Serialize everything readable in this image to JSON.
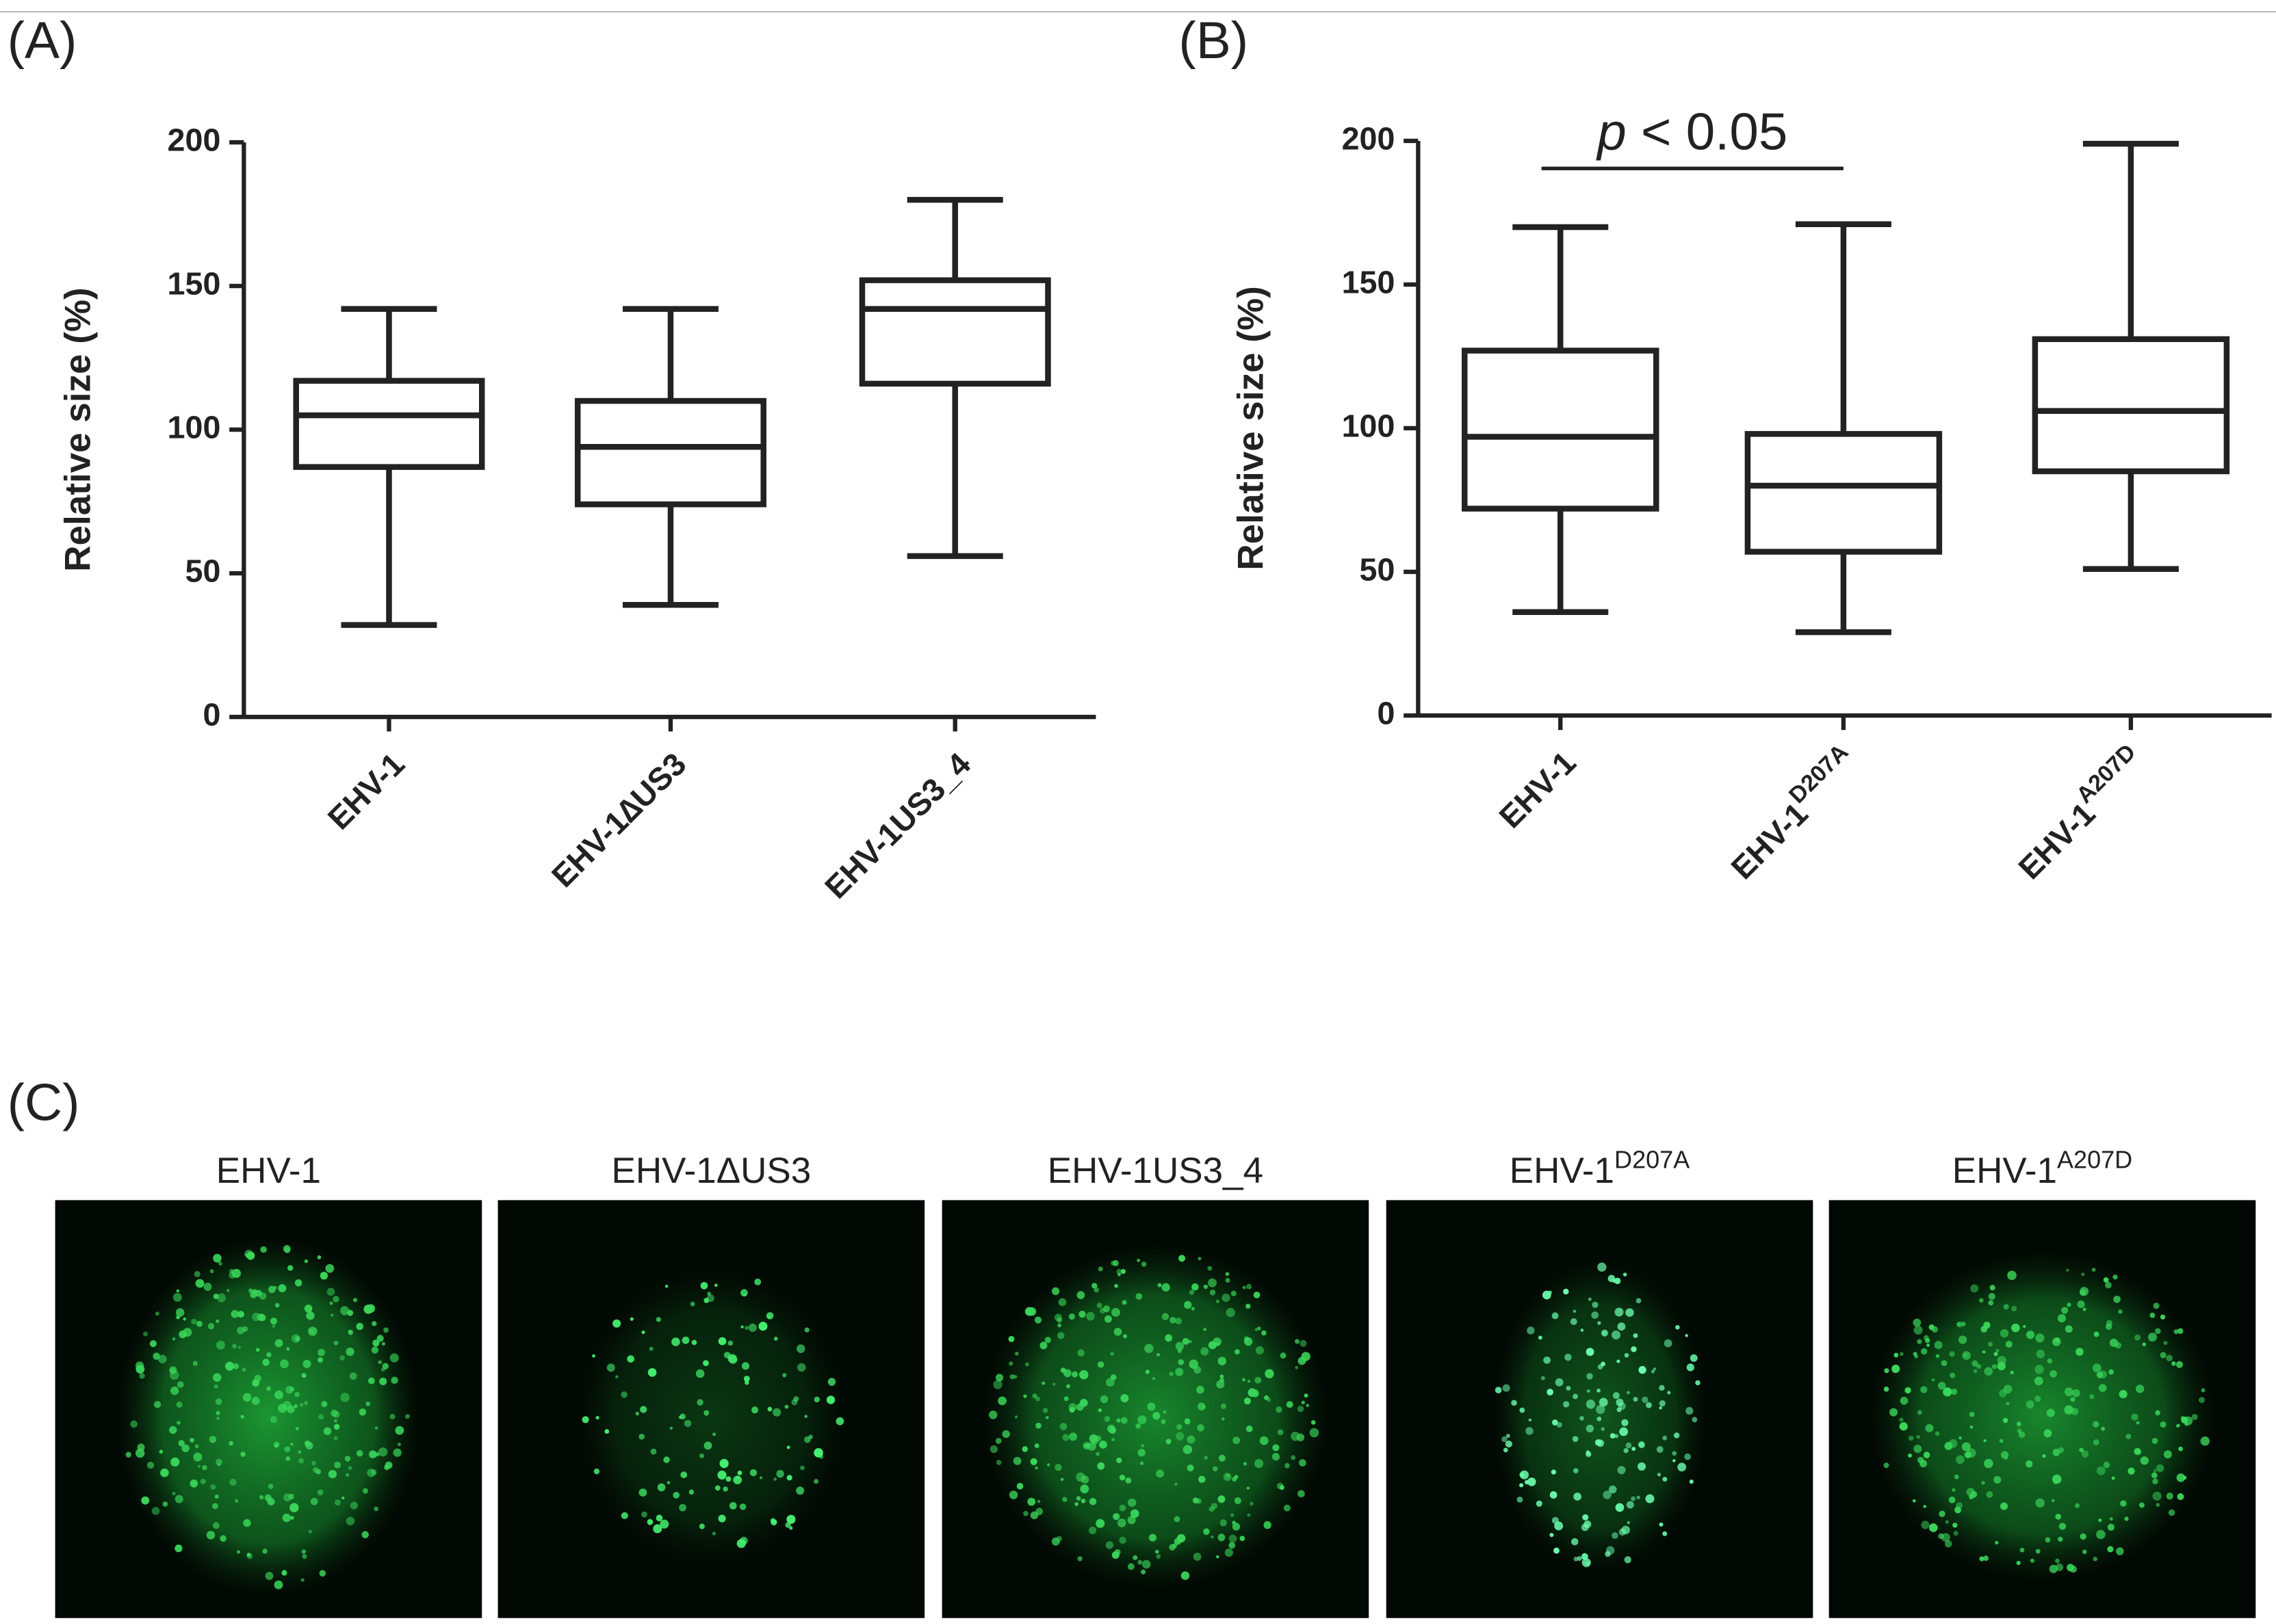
{
  "chart_data": [
    {
      "type": "box",
      "panel_label": "(A)",
      "y_label": "Relative size (%)",
      "categories": [
        {
          "base": "EHV-1"
        },
        {
          "base": "EHV-1∆US3"
        },
        {
          "base": "EHV-1US3_4"
        }
      ],
      "boxes": [
        {
          "min": 32,
          "q1": 87,
          "median": 105,
          "q3": 117,
          "max": 142
        },
        {
          "min": 39,
          "q1": 74,
          "median": 94,
          "q3": 110,
          "max": 142
        },
        {
          "min": 56,
          "q1": 116,
          "median": 142,
          "q3": 152,
          "max": 180
        }
      ],
      "color": "#222222",
      "ylim": [
        0,
        200
      ],
      "yticks": [
        0,
        50,
        100,
        150,
        200
      ]
    },
    {
      "type": "box",
      "panel_label": "(B)",
      "y_label": "Relative size (%)",
      "categories": [
        {
          "base": "EHV-1"
        },
        {
          "base": "EHV-1",
          "sup": "D207A"
        },
        {
          "base": "EHV-1",
          "sup": "A207D"
        }
      ],
      "boxes": [
        {
          "min": 36,
          "q1": 72,
          "median": 97,
          "q3": 127,
          "max": 170
        },
        {
          "min": 29,
          "q1": 57,
          "median": 80,
          "q3": 98,
          "max": 171
        },
        {
          "min": 51,
          "q1": 85,
          "median": 106,
          "q3": 131,
          "max": 199
        }
      ],
      "annotation": {
        "italic": "p",
        "text": "< 0.05"
      },
      "color": "#222222",
      "ylim": [
        0,
        200
      ],
      "yticks": [
        0,
        50,
        100,
        150,
        200
      ]
    }
  ],
  "panel_c": {
    "panel_label": "(C)",
    "images": [
      {
        "base": "EHV-1"
      },
      {
        "base": "EHV-1ΔUS3"
      },
      {
        "base": "EHV-1US3_4"
      },
      {
        "base": "EHV-1",
        "sup": "D207A"
      },
      {
        "base": "EHV-1",
        "sup": "A207D"
      }
    ]
  }
}
